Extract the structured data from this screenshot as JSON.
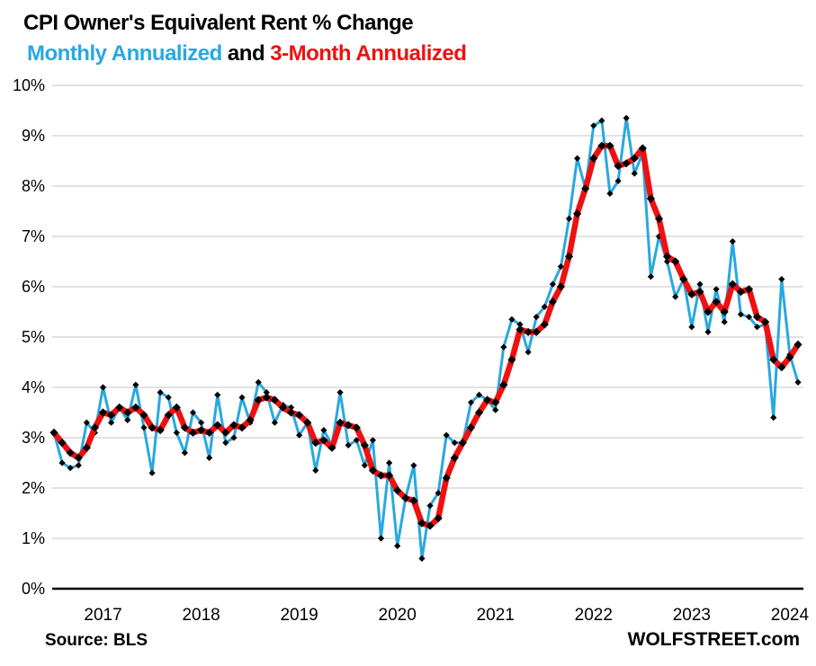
{
  "header": {
    "title": "CPI Owner's Equivalent Rent % Change",
    "subtitle_monthly": "Monthly Annualized",
    "subtitle_and": " and ",
    "subtitle_3mo": "3-Month Annualized"
  },
  "footer": {
    "source": "Source: BLS",
    "brand": "WOLFSTREET.com"
  },
  "colors": {
    "monthly_blue": "#29A8E0",
    "three_month_red": "#EE1111",
    "marker_black": "#000000",
    "gridline_gray": "#D9D9D9",
    "axis_black": "#000000",
    "background": "#FFFFFF"
  },
  "chart_data": {
    "type": "line",
    "title": "CPI Owner's Equivalent Rent % Change",
    "subtitle": "Monthly Annualized and 3-Month Annualized",
    "x_start_month": "2017-01",
    "x_end_month": "2024-08",
    "x_tick_labels": [
      "2017",
      "2018",
      "2019",
      "2020",
      "2021",
      "2022",
      "2023",
      "2024"
    ],
    "y_tick_labels": [
      "0%",
      "1%",
      "2%",
      "3%",
      "4%",
      "5%",
      "6%",
      "7%",
      "8%",
      "9%",
      "10%"
    ],
    "ylim": [
      0,
      10
    ],
    "y_step": 1,
    "grid": true,
    "legend_position": "in-subtitle",
    "series": [
      {
        "name": "Monthly Annualized",
        "color_key": "monthly_blue",
        "values": [
          3.1,
          2.5,
          2.4,
          2.45,
          3.3,
          3.1,
          4.0,
          3.3,
          3.6,
          3.35,
          4.05,
          3.2,
          2.3,
          3.9,
          3.8,
          3.1,
          2.7,
          3.5,
          3.3,
          2.6,
          3.85,
          2.9,
          3.0,
          3.8,
          3.3,
          4.1,
          3.9,
          3.3,
          3.65,
          3.6,
          3.05,
          3.3,
          2.35,
          3.15,
          2.85,
          3.9,
          2.85,
          2.95,
          2.45,
          2.95,
          1.0,
          2.5,
          0.85,
          1.8,
          2.45,
          0.6,
          1.65,
          1.9,
          3.05,
          2.9,
          2.9,
          3.7,
          3.85,
          3.75,
          3.55,
          4.8,
          5.35,
          5.25,
          4.7,
          5.4,
          5.6,
          6.05,
          6.4,
          7.35,
          8.55,
          7.95,
          9.2,
          9.3,
          7.85,
          8.1,
          9.35,
          8.25,
          8.65,
          6.2,
          7.0,
          6.5,
          5.8,
          6.15,
          5.2,
          6.05,
          5.1,
          5.95,
          5.3,
          6.9,
          5.45,
          5.4,
          5.2,
          5.25,
          3.4,
          6.15,
          4.65,
          4.1
        ]
      },
      {
        "name": "3-Month Annualized",
        "color_key": "three_month_red",
        "values": [
          3.1,
          2.9,
          2.7,
          2.6,
          2.8,
          3.2,
          3.5,
          3.45,
          3.6,
          3.5,
          3.6,
          3.45,
          3.2,
          3.15,
          3.45,
          3.6,
          3.2,
          3.1,
          3.15,
          3.1,
          3.25,
          3.1,
          3.25,
          3.2,
          3.35,
          3.75,
          3.8,
          3.75,
          3.6,
          3.5,
          3.45,
          3.3,
          2.9,
          2.95,
          2.8,
          3.3,
          3.25,
          3.2,
          2.85,
          2.35,
          2.25,
          2.25,
          1.95,
          1.8,
          1.75,
          1.3,
          1.25,
          1.4,
          2.2,
          2.6,
          2.9,
          3.2,
          3.5,
          3.75,
          3.7,
          4.05,
          4.55,
          5.15,
          5.1,
          5.1,
          5.25,
          5.7,
          6.0,
          6.6,
          7.45,
          7.95,
          8.55,
          8.8,
          8.8,
          8.4,
          8.45,
          8.55,
          8.75,
          7.75,
          7.35,
          6.6,
          6.5,
          6.15,
          5.85,
          5.9,
          5.5,
          5.7,
          5.5,
          6.05,
          5.9,
          5.95,
          5.4,
          5.3,
          4.55,
          4.4,
          4.6,
          4.85
        ]
      }
    ]
  }
}
